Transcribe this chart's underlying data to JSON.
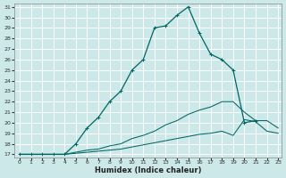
{
  "xlabel": "Humidex (Indice chaleur)",
  "bg_color": "#cce8e8",
  "grid_color": "#ffffff",
  "line_color": "#006666",
  "xlim": [
    0,
    23
  ],
  "ylim": [
    17,
    31
  ],
  "xticks": [
    0,
    1,
    2,
    3,
    4,
    5,
    6,
    7,
    8,
    9,
    10,
    11,
    12,
    13,
    14,
    15,
    16,
    17,
    18,
    19,
    20,
    21,
    22,
    23
  ],
  "yticks": [
    17,
    18,
    19,
    20,
    21,
    22,
    23,
    24,
    25,
    26,
    27,
    28,
    29,
    30,
    31
  ],
  "curve1_x": [
    0,
    1,
    2,
    3,
    4,
    5,
    6,
    7,
    8,
    9,
    10,
    11,
    12,
    13,
    14,
    15,
    16,
    17,
    18,
    19,
    20,
    21
  ],
  "curve1_y": [
    17,
    17,
    17,
    17,
    17,
    18,
    19.5,
    20.5,
    22,
    23,
    25,
    26,
    29,
    29.2,
    30.2,
    31,
    28.5,
    26.5,
    26,
    25,
    20,
    20.2
  ],
  "curve2_x": [
    0,
    1,
    2,
    3,
    4,
    5,
    6,
    7,
    8,
    9,
    10,
    11,
    12,
    13,
    14,
    15,
    16,
    17,
    18,
    19,
    20,
    21,
    22,
    23
  ],
  "curve2_y": [
    17,
    17,
    17,
    17,
    17,
    17.2,
    17.4,
    17.5,
    17.8,
    18.0,
    18.5,
    18.8,
    19.2,
    19.8,
    20.2,
    20.8,
    21.2,
    21.5,
    22.0,
    22.0,
    21.0,
    20.2,
    20.2,
    19.5
  ],
  "curve3_x": [
    0,
    1,
    2,
    3,
    4,
    5,
    6,
    7,
    8,
    9,
    10,
    11,
    12,
    13,
    14,
    15,
    16,
    17,
    18,
    19,
    20,
    21,
    22,
    23
  ],
  "curve3_y": [
    17,
    17,
    17,
    17,
    17,
    17.1,
    17.2,
    17.3,
    17.4,
    17.5,
    17.7,
    17.9,
    18.1,
    18.3,
    18.5,
    18.7,
    18.9,
    19.0,
    19.2,
    18.8,
    20.3,
    20.1,
    19.2,
    19.0
  ]
}
